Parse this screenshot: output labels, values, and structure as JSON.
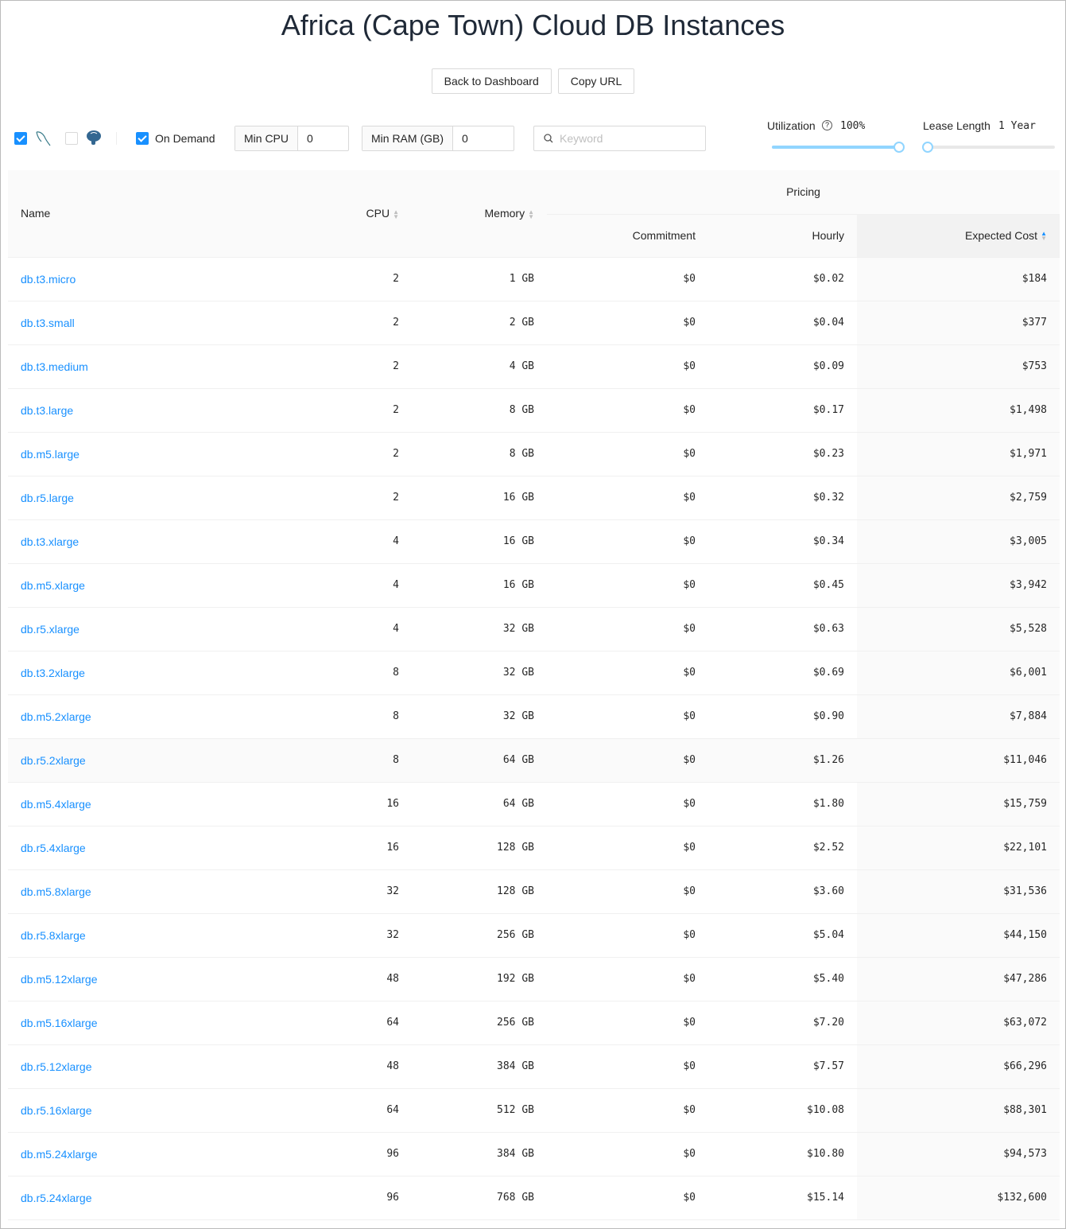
{
  "title": "Africa (Cape Town) Cloud DB Instances",
  "buttons": {
    "back": "Back to Dashboard",
    "copy": "Copy URL"
  },
  "filters": {
    "mysql_checked": true,
    "postgres_checked": false,
    "on_demand_checked": true,
    "on_demand": "On Demand",
    "min_cpu_label": "Min CPU",
    "min_cpu": "0",
    "min_ram_label": "Min RAM (GB)",
    "min_ram": "0",
    "keyword_placeholder": "Keyword",
    "utilization_label": "Utilization",
    "utilization": "100%",
    "utilization_pct": 100,
    "lease_label": "Lease Length",
    "lease": "1 Year",
    "lease_pct": 0
  },
  "headers": {
    "name": "Name",
    "cpu": "CPU",
    "memory": "Memory",
    "pricing": "Pricing",
    "commitment": "Commitment",
    "hourly": "Hourly",
    "expected": "Expected Cost"
  },
  "rows": [
    [
      "db.t3.micro",
      "2",
      "1 GB",
      "$0",
      "$0.02",
      "$184"
    ],
    [
      "db.t3.small",
      "2",
      "2 GB",
      "$0",
      "$0.04",
      "$377"
    ],
    [
      "db.t3.medium",
      "2",
      "4 GB",
      "$0",
      "$0.09",
      "$753"
    ],
    [
      "db.t3.large",
      "2",
      "8 GB",
      "$0",
      "$0.17",
      "$1,498"
    ],
    [
      "db.m5.large",
      "2",
      "8 GB",
      "$0",
      "$0.23",
      "$1,971"
    ],
    [
      "db.r5.large",
      "2",
      "16 GB",
      "$0",
      "$0.32",
      "$2,759"
    ],
    [
      "db.t3.xlarge",
      "4",
      "16 GB",
      "$0",
      "$0.34",
      "$3,005"
    ],
    [
      "db.m5.xlarge",
      "4",
      "16 GB",
      "$0",
      "$0.45",
      "$3,942"
    ],
    [
      "db.r5.xlarge",
      "4",
      "32 GB",
      "$0",
      "$0.63",
      "$5,528"
    ],
    [
      "db.t3.2xlarge",
      "8",
      "32 GB",
      "$0",
      "$0.69",
      "$6,001"
    ],
    [
      "db.m5.2xlarge",
      "8",
      "32 GB",
      "$0",
      "$0.90",
      "$7,884"
    ],
    [
      "db.r5.2xlarge",
      "8",
      "64 GB",
      "$0",
      "$1.26",
      "$11,046"
    ],
    [
      "db.m5.4xlarge",
      "16",
      "64 GB",
      "$0",
      "$1.80",
      "$15,759"
    ],
    [
      "db.r5.4xlarge",
      "16",
      "128 GB",
      "$0",
      "$2.52",
      "$22,101"
    ],
    [
      "db.m5.8xlarge",
      "32",
      "128 GB",
      "$0",
      "$3.60",
      "$31,536"
    ],
    [
      "db.r5.8xlarge",
      "32",
      "256 GB",
      "$0",
      "$5.04",
      "$44,150"
    ],
    [
      "db.m5.12xlarge",
      "48",
      "192 GB",
      "$0",
      "$5.40",
      "$47,286"
    ],
    [
      "db.m5.16xlarge",
      "64",
      "256 GB",
      "$0",
      "$7.20",
      "$63,072"
    ],
    [
      "db.r5.12xlarge",
      "48",
      "384 GB",
      "$0",
      "$7.57",
      "$66,296"
    ],
    [
      "db.r5.16xlarge",
      "64",
      "512 GB",
      "$0",
      "$10.08",
      "$88,301"
    ],
    [
      "db.m5.24xlarge",
      "96",
      "384 GB",
      "$0",
      "$10.80",
      "$94,573"
    ],
    [
      "db.r5.24xlarge",
      "96",
      "768 GB",
      "$0",
      "$15.14",
      "$132,600"
    ]
  ]
}
